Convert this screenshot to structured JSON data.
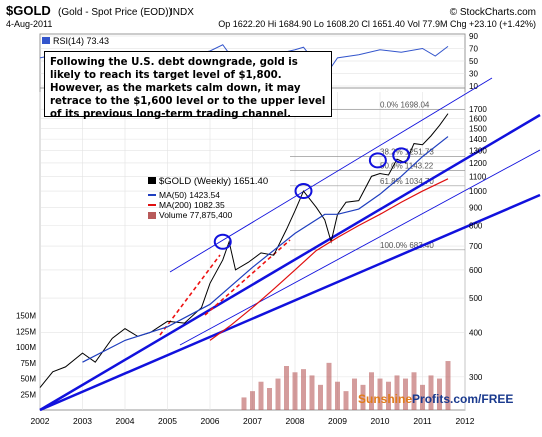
{
  "header": {
    "symbol": "$GOLD",
    "name": "(Gold - Spot Price (EOD))",
    "exchange": "INDX",
    "credit": "© StockCharts.com",
    "date": "4-Aug-2011",
    "quote": "Op 1622.20  Hi 1684.90  Lo 1608.20  Cl 1651.40  Vol 77.9M  Chg +23.10 (+1.42%)"
  },
  "annotation": {
    "text": "Following the U.S. debt downgrade, gold is likely to reach its target level of $1,800. However, as the markets calm down, it may retrace to the $1,600 level or to the upper level of its previous long-term trading channel."
  },
  "watermark": {
    "part1": "Sunshine",
    "part2": "Profits.com/FREE"
  },
  "colors": {
    "price": "#000000",
    "ma50": "#1f3fbf",
    "ma200": "#e01010",
    "volume": "#b85a5a",
    "channel": "#1111dd",
    "rsi": "#3355cc",
    "dashed": "#ee1111"
  },
  "chart_data": [
    {
      "type": "line",
      "panel": "rsi",
      "legend": "RSI(14) 73.43",
      "ylim": [
        10,
        90
      ],
      "y_ticks": [
        90,
        70,
        50,
        30,
        10
      ],
      "x": [
        2002.0,
        2002.5,
        2003.0,
        2003.5,
        2004.0,
        2004.5,
        2005.0,
        2005.5,
        2006.0,
        2006.3,
        2006.6,
        2007.0,
        2007.5,
        2008.0,
        2008.2,
        2008.5,
        2008.8,
        2009.0,
        2009.5,
        2010.0,
        2010.5,
        2011.0,
        2011.3,
        2011.6
      ],
      "values": [
        55,
        62,
        58,
        54,
        60,
        50,
        55,
        58,
        66,
        76,
        48,
        56,
        60,
        68,
        72,
        46,
        35,
        55,
        60,
        68,
        64,
        70,
        58,
        73.43
      ]
    },
    {
      "type": "line",
      "panel": "price",
      "scale": "log",
      "ylim": [
        250,
        1900
      ],
      "y_ticks": [
        300,
        400,
        500,
        600,
        700,
        800,
        900,
        1000,
        1100,
        1200,
        1300,
        1400,
        1500,
        1600,
        1700
      ],
      "x_ticks": [
        "2002",
        "2003",
        "2004",
        "2005",
        "2006",
        "2007",
        "2008",
        "2009",
        "2010",
        "2011",
        "2012"
      ],
      "x_range": [
        2002.0,
        2012.0
      ],
      "series": [
        {
          "name": "$GOLD (Weekly) 1651.40",
          "x": [
            2002.0,
            2002.3,
            2002.6,
            2003.0,
            2003.3,
            2003.7,
            2004.0,
            2004.3,
            2004.6,
            2005.0,
            2005.4,
            2005.8,
            2006.0,
            2006.3,
            2006.45,
            2006.6,
            2006.9,
            2007.2,
            2007.5,
            2007.8,
            2008.0,
            2008.2,
            2008.5,
            2008.7,
            2008.85,
            2009.0,
            2009.2,
            2009.5,
            2009.8,
            2010.0,
            2010.2,
            2010.4,
            2010.6,
            2010.8,
            2011.0,
            2011.2,
            2011.4,
            2011.6
          ],
          "values": [
            280,
            310,
            320,
            350,
            330,
            385,
            410,
            390,
            400,
            430,
            425,
            470,
            550,
            640,
            720,
            600,
            630,
            670,
            660,
            780,
            880,
            1000,
            900,
            830,
            720,
            860,
            930,
            940,
            1100,
            1120,
            1110,
            1230,
            1200,
            1360,
            1350,
            1430,
            1530,
            1651.4
          ]
        },
        {
          "name": "MA(50) 1423.54",
          "x": [
            2003.0,
            2004.0,
            2005.0,
            2006.0,
            2007.0,
            2008.0,
            2008.7,
            2009.0,
            2009.5,
            2010.0,
            2010.5,
            2011.0,
            2011.6
          ],
          "values": [
            330,
            380,
            415,
            480,
            610,
            760,
            860,
            860,
            890,
            980,
            1100,
            1250,
            1423.54
          ]
        },
        {
          "name": "MA(200) 1082.35",
          "x": [
            2006.0,
            2006.5,
            2007.0,
            2007.5,
            2008.0,
            2008.5,
            2009.0,
            2009.5,
            2010.0,
            2010.5,
            2011.0,
            2011.6
          ],
          "values": [
            380,
            420,
            470,
            530,
            600,
            680,
            740,
            800,
            860,
            930,
            1000,
            1082.35
          ]
        }
      ],
      "fib_levels": [
        {
          "label": "0.0% 1698.04",
          "value": 1698.04
        },
        {
          "label": "38.2% 1251.73",
          "value": 1251.73
        },
        {
          "label": "50.0% 1143.22",
          "value": 1143.22
        },
        {
          "label": "61.8% 1034.70",
          "value": 1034.7
        },
        {
          "label": "100.0% 683.40",
          "value": 683.4
        }
      ],
      "circled_points": [
        {
          "x": 2006.3,
          "y": 720
        },
        {
          "x": 2008.2,
          "y": 1000
        },
        {
          "x": 2009.95,
          "y": 1220
        },
        {
          "x": 2010.5,
          "y": 1260
        }
      ]
    },
    {
      "type": "bar",
      "panel": "volume",
      "legend": "Volume 77,875,400",
      "ylim": [
        0,
        175
      ],
      "y_ticks": [
        25,
        50,
        75,
        100,
        125,
        150
      ],
      "y_tick_labels": [
        "25M",
        "50M",
        "75M",
        "100M",
        "125M",
        "150M"
      ],
      "x": [
        2006.8,
        2007.0,
        2007.2,
        2007.4,
        2007.6,
        2007.8,
        2008.0,
        2008.2,
        2008.4,
        2008.6,
        2008.8,
        2009.0,
        2009.2,
        2009.4,
        2009.6,
        2009.8,
        2010.0,
        2010.2,
        2010.4,
        2010.6,
        2010.8,
        2011.0,
        2011.2,
        2011.4,
        2011.6
      ],
      "values": [
        20,
        30,
        45,
        35,
        50,
        70,
        60,
        65,
        55,
        40,
        75,
        45,
        30,
        50,
        40,
        60,
        50,
        45,
        55,
        50,
        60,
        40,
        55,
        50,
        77.9
      ]
    }
  ]
}
